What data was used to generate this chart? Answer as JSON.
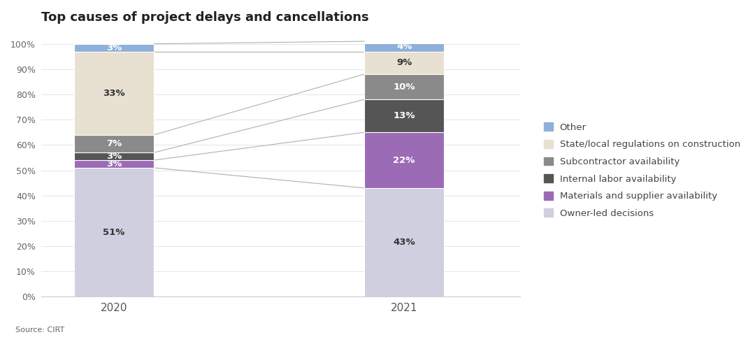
{
  "title": "Top causes of project delays and cancellations",
  "source": "Source: CIRT",
  "years": [
    "2020",
    "2021"
  ],
  "categories": [
    "Owner-led decisions",
    "Materials and supplier availability",
    "Internal labor availability",
    "Subcontractor availability",
    "State/local regulations on construction",
    "Other"
  ],
  "values_2020": [
    51,
    3,
    3,
    7,
    33,
    3
  ],
  "values_2021": [
    43,
    22,
    13,
    10,
    9,
    4
  ],
  "colors": [
    "#d0cfe0",
    "#9b6bb5",
    "#555555",
    "#8a8a8a",
    "#e8e0d0",
    "#8fb0d8"
  ],
  "legend_labels": [
    "Other",
    "State/local regulations on construction",
    "Subcontractor availability",
    "Internal labor availability",
    "Materials and supplier availability",
    "Owner-led decisions"
  ],
  "legend_colors": [
    "#8fb0d8",
    "#e8e0d0",
    "#8a8a8a",
    "#555555",
    "#9b6bb5",
    "#d0cfe0"
  ],
  "bar_width": 0.55,
  "x_positions": [
    1,
    3
  ],
  "figsize": [
    10.8,
    4.82
  ],
  "dpi": 100,
  "ylim": [
    0,
    100
  ],
  "yticks": [
    0,
    10,
    20,
    30,
    40,
    50,
    60,
    70,
    80,
    90,
    100
  ],
  "ytick_labels": [
    "0%",
    "10%",
    "20%",
    "30%",
    "40%",
    "50%",
    "60%",
    "70%",
    "80%",
    "90%",
    "100%"
  ],
  "background_color": "#ffffff",
  "connector_color": "#b0b0b0"
}
